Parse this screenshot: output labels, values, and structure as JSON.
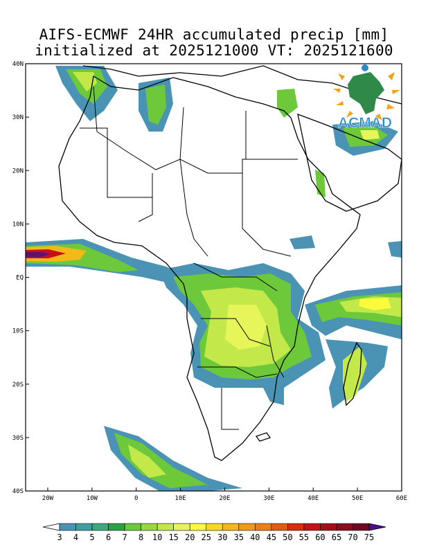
{
  "title": {
    "line1": "AIFS-ECMWF 24HR accumulated precip [mm]",
    "line2": "initialized at 2025121000 VT: 2025121600"
  },
  "logo": {
    "text": "ACMAD"
  },
  "map": {
    "lon_range": [
      -25,
      60
    ],
    "lat_range": [
      -40,
      40
    ],
    "lat_labels": [
      {
        "value": 40,
        "text": "40N"
      },
      {
        "value": 30,
        "text": "30N"
      },
      {
        "value": 20,
        "text": "20N"
      },
      {
        "value": 10,
        "text": "10N"
      },
      {
        "value": 0,
        "text": "EQ"
      },
      {
        "value": -10,
        "text": "10S"
      },
      {
        "value": -20,
        "text": "20S"
      },
      {
        "value": -30,
        "text": "30S"
      },
      {
        "value": -40,
        "text": "40S"
      }
    ],
    "lon_labels": [
      {
        "value": -20,
        "text": "20W"
      },
      {
        "value": -10,
        "text": "10W"
      },
      {
        "value": 0,
        "text": "0"
      },
      {
        "value": 10,
        "text": "10E"
      },
      {
        "value": 20,
        "text": "20E"
      },
      {
        "value": 30,
        "text": "30E"
      },
      {
        "value": 40,
        "text": "40E"
      },
      {
        "value": 50,
        "text": "50E"
      },
      {
        "value": 60,
        "text": "60E"
      }
    ]
  },
  "colorbar": {
    "levels": [
      "3",
      "4",
      "5",
      "6",
      "7",
      "8",
      "10",
      "15",
      "20",
      "25",
      "30",
      "35",
      "40",
      "45",
      "50",
      "55",
      "60",
      "65",
      "70",
      "75"
    ],
    "colors": [
      "#4a93b4",
      "#3f9f9d",
      "#3bab7c",
      "#2fa046",
      "#6dc93a",
      "#9bd83c",
      "#c3e84a",
      "#e5f55a",
      "#fbfb3c",
      "#f6da1c",
      "#f4b818",
      "#f19a16",
      "#ee7f12",
      "#e65a10",
      "#de2b0d",
      "#c81018",
      "#a80c1a",
      "#8a0b1c",
      "#6c0a22",
      "#5a1470",
      "#4a0f8f"
    ]
  }
}
